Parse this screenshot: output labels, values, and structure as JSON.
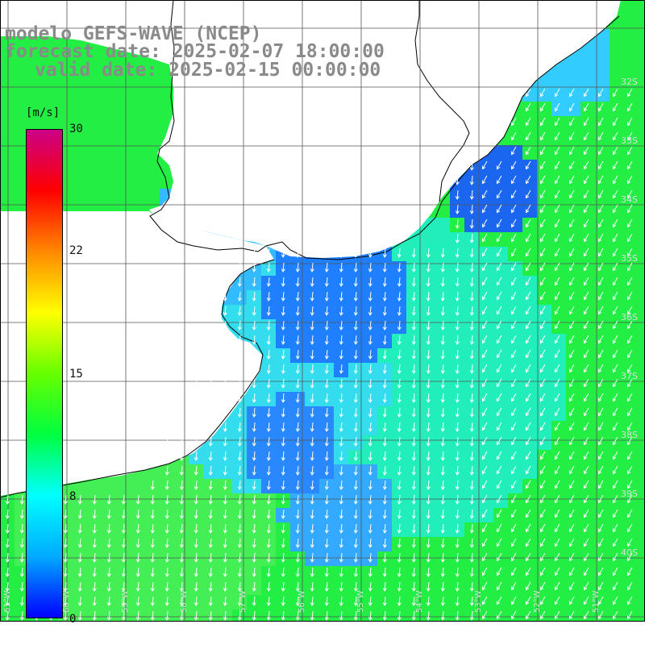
{
  "header": {
    "model_line": "modelo GEFS-WAVE (NCEP)",
    "forecast_line": "forecast date: 2025-02-07 18:00:00",
    "valid_line": "valid date: 2025-02-15 00:00:00"
  },
  "legend": {
    "units": "[m/s]",
    "ticks": [
      "30",
      "22",
      "15",
      "8",
      "0"
    ],
    "tick_values": [
      30,
      22,
      15,
      8,
      0
    ],
    "range": [
      0,
      30
    ],
    "gradient": [
      "#0000ff",
      "#00aaff",
      "#00ffff",
      "#00ff40",
      "#66ff00",
      "#ffff00",
      "#ff8800",
      "#ff0000",
      "#cc0088"
    ]
  },
  "map": {
    "ocean_background": "#00ff33",
    "land_color": "#ffffff",
    "grid_color": "#666666",
    "lon_labels": [
      "61°W",
      "60°W",
      "59°W",
      "58°W",
      "57°W",
      "56°W",
      "55°W",
      "54°W",
      "53°W",
      "52°W",
      "51°W"
    ],
    "lat_labels": [
      "32S",
      "33S",
      "34S",
      "35S",
      "36S",
      "37S",
      "38S",
      "39S",
      "40S"
    ],
    "arrow_color": "#ffffff"
  }
}
